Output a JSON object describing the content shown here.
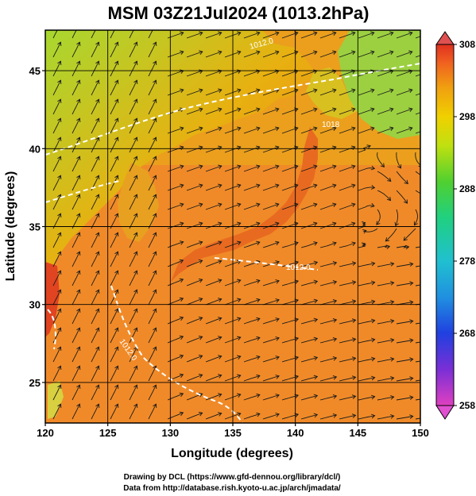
{
  "title": "MSM 03Z21Jul2024 (1013.2hPa)",
  "xlabel": "Longitude (degrees)",
  "ylabel": "Latitude  (degrees)",
  "credits": [
    "Drawing by DCL (https://www.gfd-dennou.org/library/dcl/)",
    "Data from http://database.rish.kyoto-u.ac.jp/arch/jmadata/"
  ],
  "map": {
    "lon_range": [
      120,
      150
    ],
    "lat_range": [
      22.4,
      47.6
    ],
    "lon_ticks": [
      120,
      125,
      130,
      135,
      140,
      145,
      150
    ],
    "lat_ticks": [
      25,
      30,
      35,
      40,
      45
    ],
    "grid": true,
    "fill_variable": "temperature",
    "vector_style": "streamlines",
    "contour_labels": [
      "1018",
      "1012.0",
      "1012.0",
      "1012.0"
    ]
  },
  "colorbar": {
    "min": 258,
    "max": 308,
    "ticks": [
      258,
      268,
      278,
      288,
      298,
      308
    ],
    "colors": [
      "#e040c0",
      "#7a2fd6",
      "#2040e0",
      "#20b0e0",
      "#20d0a0",
      "#30d040",
      "#a0e020",
      "#e0e000",
      "#f0b000",
      "#f07020",
      "#e03020"
    ]
  }
}
